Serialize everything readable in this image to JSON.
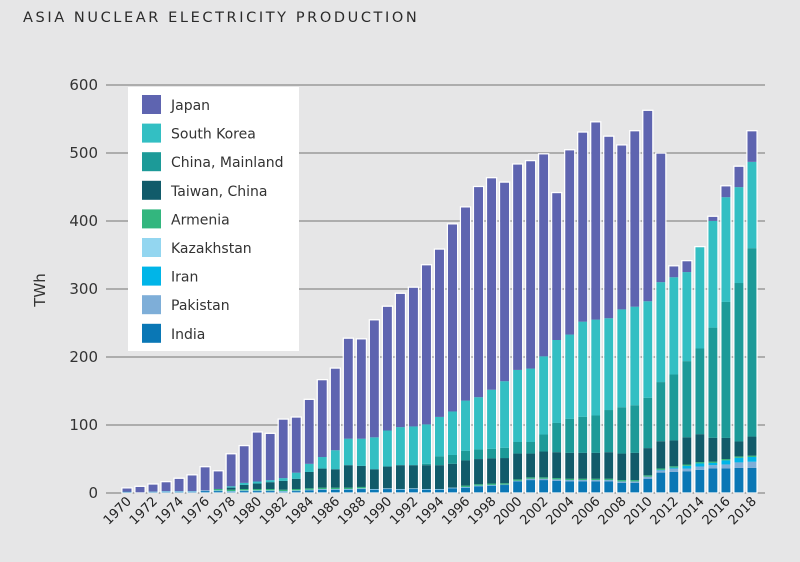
{
  "chart_data": {
    "type": "bar",
    "stacked": true,
    "title": "ASIA NUCLEAR ELECTRICITY PRODUCTION",
    "xlabel": "",
    "ylabel": "TWh",
    "ylim": [
      0,
      600
    ],
    "yticks": [
      0,
      100,
      200,
      300,
      400,
      500,
      600
    ],
    "grid": true,
    "legend_position": "top-left",
    "x": [
      1970,
      1971,
      1972,
      1973,
      1974,
      1975,
      1976,
      1977,
      1978,
      1979,
      1980,
      1981,
      1982,
      1983,
      1984,
      1985,
      1986,
      1987,
      1988,
      1989,
      1990,
      1991,
      1992,
      1993,
      1994,
      1995,
      1996,
      1997,
      1998,
      1999,
      2000,
      2001,
      2002,
      2003,
      2004,
      2005,
      2006,
      2007,
      2008,
      2009,
      2010,
      2011,
      2012,
      2013,
      2014,
      2015,
      2016,
      2017,
      2018
    ],
    "xtick_labels": [
      "1970",
      "1972",
      "1974",
      "1976",
      "1978",
      "1980",
      "1982",
      "1984",
      "1986",
      "1988",
      "1990",
      "1992",
      "1994",
      "1996",
      "1998",
      "2000",
      "2002",
      "2004",
      "2006",
      "2008",
      "2010",
      "2012",
      "2014",
      "2016",
      "2018"
    ],
    "series": [
      {
        "name": "India",
        "color": "#0a77b5",
        "values": [
          2,
          1,
          2,
          2,
          2,
          2,
          3,
          3,
          2,
          3,
          3,
          3,
          2,
          3,
          4,
          5,
          5,
          5,
          6,
          5,
          6,
          5,
          6,
          5,
          5,
          7,
          8,
          10,
          11,
          12,
          17,
          19,
          19,
          18,
          17,
          17,
          17,
          17,
          15,
          15,
          21,
          30,
          31,
          32,
          34,
          36,
          36,
          37,
          37
        ]
      },
      {
        "name": "Pakistan",
        "color": "#7eaed8",
        "values": [
          0,
          0,
          0.4,
          0.4,
          0.4,
          0.4,
          0.4,
          0.4,
          0.4,
          0.4,
          0.4,
          0.4,
          0.4,
          0.4,
          0.4,
          0.4,
          0.4,
          0.4,
          0.4,
          0.4,
          0.4,
          0.4,
          0.4,
          0.4,
          0.4,
          0.4,
          0.4,
          0.4,
          0.4,
          0.4,
          1,
          2,
          2,
          2,
          2,
          2,
          2,
          2,
          2,
          2,
          3,
          4,
          5,
          4,
          5,
          5,
          6,
          8,
          9
        ]
      },
      {
        "name": "Iran",
        "color": "#00b5e8",
        "values": [
          0,
          0,
          0,
          0,
          0,
          0,
          0,
          0,
          0,
          0,
          0,
          0,
          0,
          0,
          0,
          0,
          0,
          0,
          0,
          0,
          0,
          0,
          0,
          0,
          0,
          0,
          0,
          0,
          0,
          0,
          0,
          0,
          0,
          0,
          0,
          0,
          0,
          0,
          0,
          0,
          0,
          0.1,
          1.3,
          3.9,
          4.5,
          3.2,
          6,
          6.8,
          7
        ]
      },
      {
        "name": "Kazakhstan",
        "color": "#93d6f0",
        "values": [
          0,
          0,
          0,
          0.5,
          0.5,
          0.5,
          0.5,
          0.5,
          0.5,
          0.5,
          0.5,
          0.5,
          0.5,
          0.5,
          0.5,
          0.5,
          0.5,
          0.5,
          0.5,
          0.5,
          0.5,
          0.5,
          0.5,
          0.5,
          0.5,
          0.5,
          0.5,
          0.5,
          0.5,
          0,
          0,
          0,
          0,
          0,
          0,
          0,
          0,
          0,
          0,
          0,
          0,
          0,
          0,
          0,
          0,
          0,
          0,
          0,
          0
        ]
      },
      {
        "name": "Armenia",
        "color": "#33b67e",
        "values": [
          0,
          0,
          0,
          0,
          0,
          0,
          0,
          2,
          2,
          2,
          2,
          2,
          2,
          2,
          2,
          2,
          2,
          2,
          2,
          0,
          0,
          0,
          0,
          0,
          0,
          0,
          2,
          2,
          2,
          2,
          2,
          2,
          2,
          2,
          2,
          2,
          2,
          2,
          2,
          2,
          2,
          2,
          2,
          2,
          2,
          2,
          2,
          2,
          2
        ]
      },
      {
        "name": "Taiwan, China",
        "color": "#115b6a",
        "values": [
          0,
          0,
          0,
          0,
          0,
          0,
          0,
          0,
          3,
          6,
          8,
          10,
          13,
          15,
          24,
          28,
          27,
          33,
          31,
          29,
          32,
          35,
          34,
          35,
          35,
          35,
          37,
          37,
          37,
          37,
          38,
          35,
          38,
          38,
          38,
          38,
          38,
          39,
          39,
          40,
          40,
          40,
          38,
          40,
          41,
          35,
          31,
          22,
          28
        ]
      },
      {
        "name": "China, Mainland",
        "color": "#1c9a98",
        "values": [
          0,
          0,
          0,
          0,
          0,
          0,
          0,
          0,
          0,
          0,
          0,
          0,
          0,
          0,
          0,
          0,
          0,
          0,
          0,
          0,
          0,
          0,
          0,
          2,
          13,
          13,
          14,
          14,
          14,
          15,
          17,
          17,
          25,
          43,
          50,
          53,
          55,
          62,
          68,
          70,
          74,
          87,
          97,
          112,
          126,
          162,
          200,
          233,
          277
        ]
      },
      {
        "name": "South Korea",
        "color": "#33bfc3",
        "values": [
          0,
          0,
          0,
          0,
          0,
          0,
          0,
          0,
          2,
          3,
          3,
          3,
          4,
          9,
          12,
          17,
          28,
          39,
          40,
          47,
          53,
          56,
          57,
          58,
          58,
          64,
          74,
          77,
          87,
          98,
          106,
          108,
          115,
          122,
          124,
          140,
          141,
          135,
          144,
          145,
          142,
          147,
          143,
          131,
          149,
          157,
          154,
          141,
          127
        ]
      },
      {
        "name": "Japan",
        "color": "#5e64b0",
        "values": [
          4.6,
          8,
          10,
          13,
          18,
          23,
          34,
          26,
          47,
          54,
          72,
          68,
          86,
          81,
          94,
          113,
          120,
          147,
          146,
          172,
          182,
          196,
          204,
          234,
          246,
          275,
          284,
          309,
          311,
          292,
          302,
          305,
          297,
          216,
          271,
          278,
          290,
          267,
          241,
          258,
          280,
          189,
          16,
          16,
          0,
          6,
          16,
          30,
          45
        ]
      }
    ],
    "legend_order": [
      "Japan",
      "South Korea",
      "China, Mainland",
      "Taiwan, China",
      "Armenia",
      "Kazakhstan",
      "Iran",
      "Pakistan",
      "India"
    ]
  }
}
